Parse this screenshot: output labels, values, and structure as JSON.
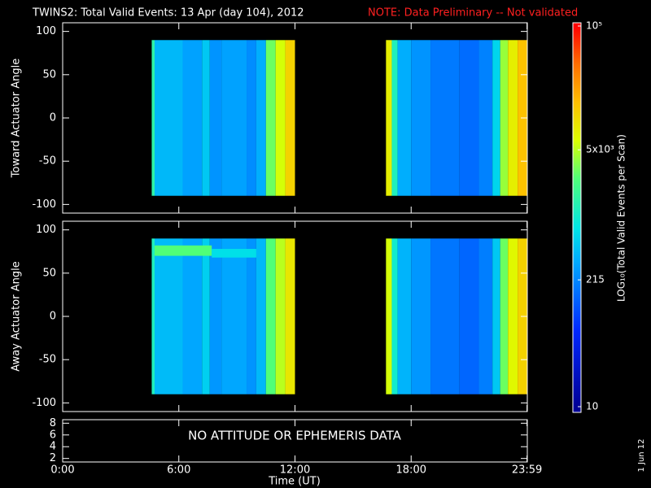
{
  "header": {
    "title": "TWINS2: Total Valid Events: 13 Apr (day 104), 2012",
    "note": "NOTE: Data Preliminary -- Not validated"
  },
  "chart_data": [
    {
      "type": "heatmap",
      "ylabel": "Toward Actuator Angle",
      "xlim": [
        0,
        24
      ],
      "ylim": [
        -110,
        110
      ],
      "yticks": [
        100,
        50,
        0,
        -50,
        -100
      ],
      "segments": [
        {
          "t": [
            4.6,
            4.75
          ],
          "angle": [
            -90,
            90
          ],
          "value": 1500
        },
        {
          "t": [
            4.75,
            6.2
          ],
          "angle": [
            -90,
            90
          ],
          "value": 400
        },
        {
          "t": [
            6.2,
            7.2
          ],
          "angle": [
            -90,
            90
          ],
          "value": 300
        },
        {
          "t": [
            7.2,
            7.6
          ],
          "angle": [
            -90,
            90
          ],
          "value": 500
        },
        {
          "t": [
            7.6,
            8.2
          ],
          "angle": [
            -90,
            90
          ],
          "value": 250
        },
        {
          "t": [
            8.2,
            9.5
          ],
          "angle": [
            -90,
            90
          ],
          "value": 300
        },
        {
          "t": [
            9.5,
            10.0
          ],
          "angle": [
            -90,
            90
          ],
          "value": 230
        },
        {
          "t": [
            10.0,
            10.5
          ],
          "angle": [
            -90,
            90
          ],
          "value": 350
        },
        {
          "t": [
            10.5,
            11.0
          ],
          "angle": [
            -90,
            90
          ],
          "value": 3000
        },
        {
          "t": [
            11.0,
            11.5
          ],
          "angle": [
            -90,
            90
          ],
          "value": 6000
        },
        {
          "t": [
            11.5,
            12.0
          ],
          "angle": [
            -90,
            90
          ],
          "value": 12000
        },
        {
          "t": [
            16.7,
            17.0
          ],
          "angle": [
            -90,
            90
          ],
          "value": 8000
        },
        {
          "t": [
            17.0,
            17.3
          ],
          "angle": [
            -90,
            90
          ],
          "value": 1200
        },
        {
          "t": [
            17.3,
            18.0
          ],
          "angle": [
            -90,
            90
          ],
          "value": 350
        },
        {
          "t": [
            18.0,
            19.0
          ],
          "angle": [
            -90,
            90
          ],
          "value": 250
        },
        {
          "t": [
            19.0,
            20.5
          ],
          "angle": [
            -90,
            90
          ],
          "value": 180
        },
        {
          "t": [
            20.5,
            21.5
          ],
          "angle": [
            -90,
            90
          ],
          "value": 150
        },
        {
          "t": [
            21.5,
            22.2
          ],
          "angle": [
            -90,
            90
          ],
          "value": 200
        },
        {
          "t": [
            22.2,
            22.6
          ],
          "angle": [
            -90,
            90
          ],
          "value": 600
        },
        {
          "t": [
            22.6,
            23.0
          ],
          "angle": [
            -90,
            90
          ],
          "value": 4000
        },
        {
          "t": [
            23.0,
            23.5
          ],
          "angle": [
            -90,
            90
          ],
          "value": 8000
        },
        {
          "t": [
            23.5,
            24.0
          ],
          "angle": [
            -90,
            90
          ],
          "value": 15000
        }
      ]
    },
    {
      "type": "heatmap",
      "ylabel": "Away Actuator Angle",
      "xlim": [
        0,
        24
      ],
      "ylim": [
        -110,
        110
      ],
      "yticks": [
        100,
        50,
        0,
        -50,
        -100
      ],
      "segments": [
        {
          "t": [
            4.6,
            4.75
          ],
          "angle": [
            -90,
            90
          ],
          "value": 1200
        },
        {
          "t": [
            4.75,
            6.2
          ],
          "angle": [
            -90,
            90
          ],
          "value": 420
        },
        {
          "t": [
            6.2,
            7.2
          ],
          "angle": [
            -90,
            90
          ],
          "value": 320
        },
        {
          "t": [
            7.2,
            7.6
          ],
          "angle": [
            -90,
            90
          ],
          "value": 550
        },
        {
          "t": [
            7.6,
            8.2
          ],
          "angle": [
            -90,
            90
          ],
          "value": 260
        },
        {
          "t": [
            8.2,
            9.5
          ],
          "angle": [
            -90,
            90
          ],
          "value": 320
        },
        {
          "t": [
            9.5,
            10.0
          ],
          "angle": [
            -90,
            90
          ],
          "value": 250
        },
        {
          "t": [
            10.0,
            10.5
          ],
          "angle": [
            -90,
            90
          ],
          "value": 400
        },
        {
          "t": [
            10.5,
            11.0
          ],
          "angle": [
            -90,
            90
          ],
          "value": 2500
        },
        {
          "t": [
            11.0,
            11.5
          ],
          "angle": [
            -90,
            90
          ],
          "value": 5000
        },
        {
          "t": [
            11.5,
            12.0
          ],
          "angle": [
            -90,
            90
          ],
          "value": 9000
        },
        {
          "t": [
            4.75,
            7.7
          ],
          "angle": [
            70,
            82
          ],
          "value": 2500
        },
        {
          "t": [
            7.7,
            10.0
          ],
          "angle": [
            68,
            78
          ],
          "value": 700
        },
        {
          "t": [
            16.7,
            17.0
          ],
          "angle": [
            -90,
            90
          ],
          "value": 6000
        },
        {
          "t": [
            17.0,
            17.3
          ],
          "angle": [
            -90,
            90
          ],
          "value": 1000
        },
        {
          "t": [
            17.3,
            18.0
          ],
          "angle": [
            -90,
            90
          ],
          "value": 380
        },
        {
          "t": [
            18.0,
            19.0
          ],
          "angle": [
            -90,
            90
          ],
          "value": 260
        },
        {
          "t": [
            19.0,
            20.5
          ],
          "angle": [
            -90,
            90
          ],
          "value": 170
        },
        {
          "t": [
            20.5,
            21.5
          ],
          "angle": [
            -90,
            90
          ],
          "value": 140
        },
        {
          "t": [
            21.5,
            22.2
          ],
          "angle": [
            -90,
            90
          ],
          "value": 190
        },
        {
          "t": [
            22.2,
            22.6
          ],
          "angle": [
            -90,
            90
          ],
          "value": 500
        },
        {
          "t": [
            22.6,
            23.0
          ],
          "angle": [
            -90,
            90
          ],
          "value": 3000
        },
        {
          "t": [
            23.0,
            23.5
          ],
          "angle": [
            -90,
            90
          ],
          "value": 7000
        },
        {
          "t": [
            23.5,
            24.0
          ],
          "angle": [
            -90,
            90
          ],
          "value": 12000
        }
      ]
    },
    {
      "type": "annotation",
      "xlim": [
        0,
        24
      ],
      "ylim": [
        1.4,
        8.6
      ],
      "yticks": [
        8,
        6,
        4,
        2
      ],
      "annotation": "NO ATTITUDE OR EPHEMERIS DATA",
      "xlabel": "Time (UT)",
      "xticks": [
        {
          "value": 0,
          "label": "0:00"
        },
        {
          "value": 6,
          "label": "6:00"
        },
        {
          "value": 12,
          "label": "12:00"
        },
        {
          "value": 18,
          "label": "18:00"
        },
        {
          "value": 23.983,
          "label": "23:59"
        }
      ]
    }
  ],
  "colorbar": {
    "label": "LOG₁₀(Total Valid Events per Scan)",
    "log": true,
    "clim": [
      10,
      100000
    ],
    "ticks": [
      10,
      215,
      {
        "value": 5000,
        "label": "5x10³"
      },
      {
        "value": 100000,
        "label": "10⁵"
      }
    ]
  },
  "footer_date": "1 Jun 12"
}
